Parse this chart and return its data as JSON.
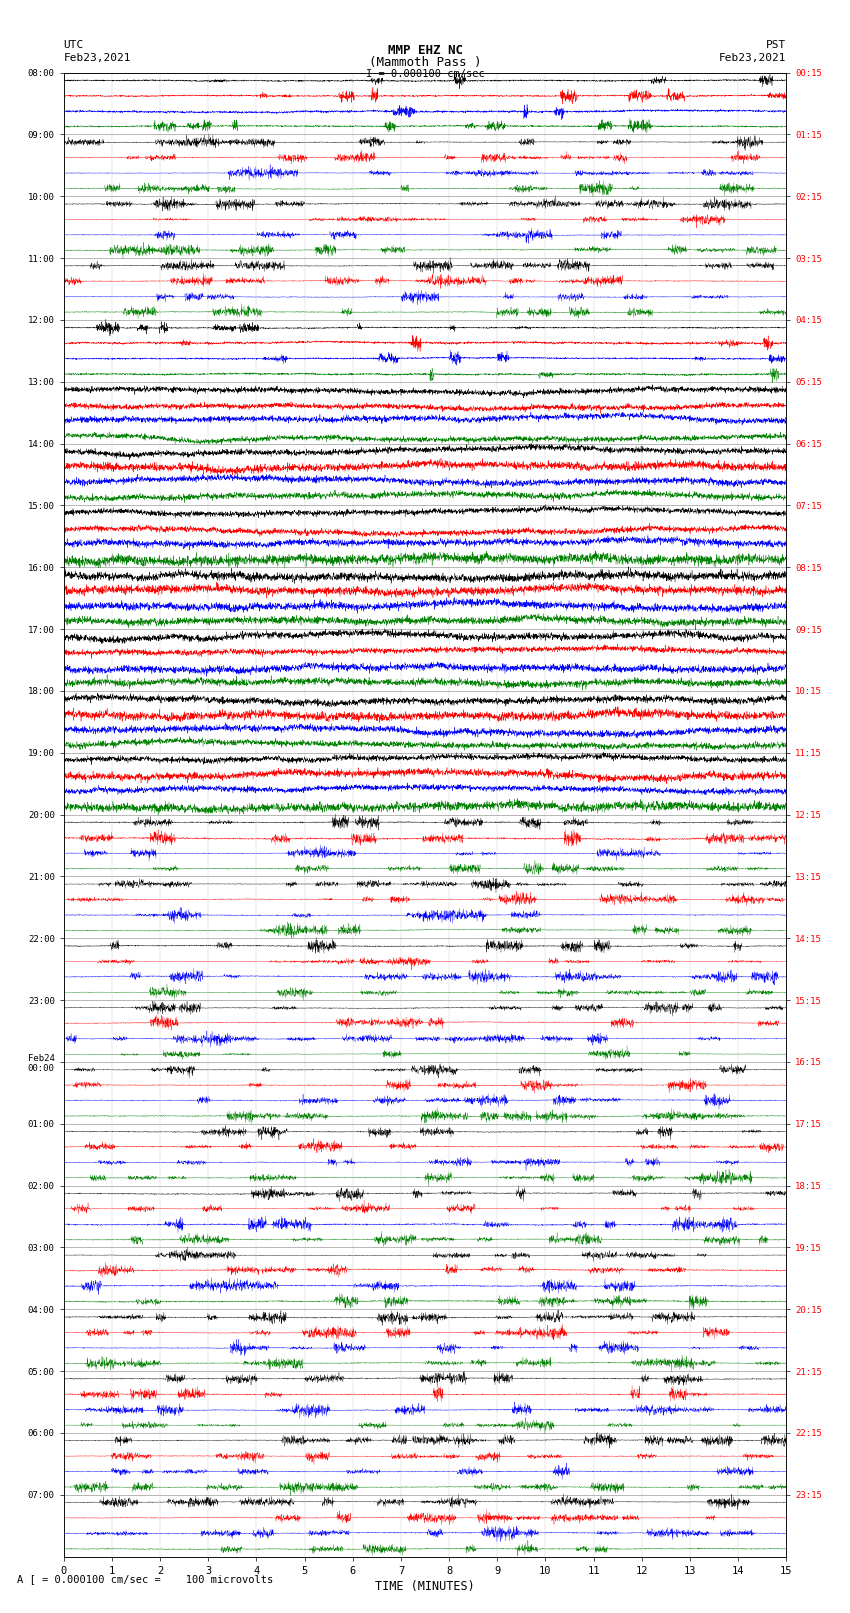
{
  "title_line1": "MMP EHZ NC",
  "title_line2": "(Mammoth Pass )",
  "title_line3": "I = 0.000100 cm/sec",
  "label_left_top": "UTC",
  "label_left_date": "Feb23,2021",
  "label_right_top": "PST",
  "label_right_date": "Feb23,2021",
  "xlabel": "TIME (MINUTES)",
  "footnote": "A [ = 0.000100 cm/sec =    100 microvolts",
  "utc_times": [
    "08:00",
    "09:00",
    "10:00",
    "11:00",
    "12:00",
    "13:00",
    "14:00",
    "15:00",
    "16:00",
    "17:00",
    "18:00",
    "19:00",
    "20:00",
    "21:00",
    "22:00",
    "23:00",
    "Feb24\n00:00",
    "01:00",
    "02:00",
    "03:00",
    "04:00",
    "05:00",
    "06:00",
    "07:00"
  ],
  "pst_times": [
    "00:15",
    "01:15",
    "02:15",
    "03:15",
    "04:15",
    "05:15",
    "06:15",
    "07:15",
    "08:15",
    "09:15",
    "10:15",
    "11:15",
    "12:15",
    "13:15",
    "14:15",
    "15:15",
    "16:15",
    "17:15",
    "18:15",
    "19:15",
    "20:15",
    "21:15",
    "22:15",
    "23:15"
  ],
  "n_rows": 24,
  "n_points": 3600,
  "colors": [
    "black",
    "red",
    "blue",
    "green"
  ],
  "bg_color": "white",
  "row_amplitudes": [
    0.12,
    0.55,
    0.85,
    0.65,
    0.15,
    0.06,
    0.06,
    0.06,
    0.06,
    0.07,
    0.08,
    0.06,
    0.8,
    0.9,
    0.9,
    0.9,
    0.9,
    0.9,
    0.9,
    0.9,
    0.9,
    0.9,
    0.9,
    0.9
  ]
}
